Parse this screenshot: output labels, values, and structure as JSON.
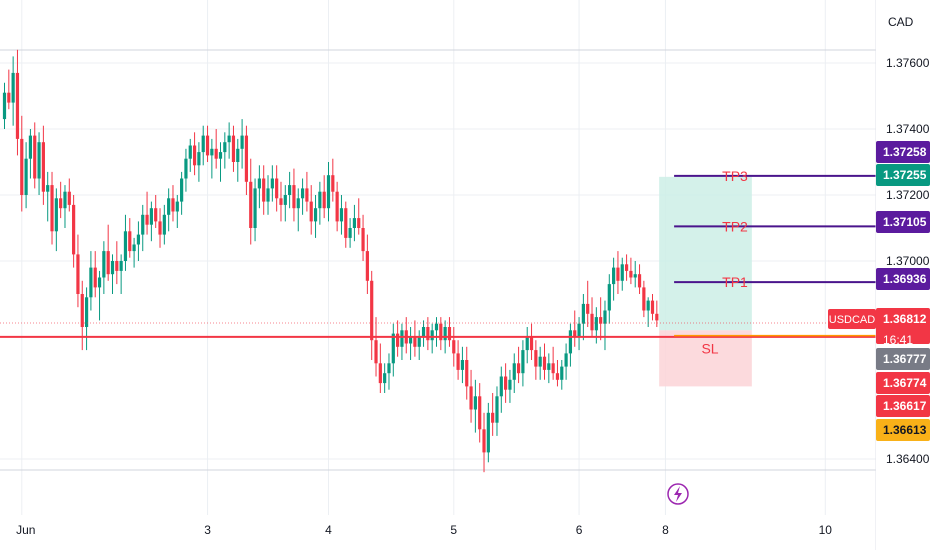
{
  "currency": "CAD",
  "symbol": "USDCAD",
  "countdown": "16:41",
  "colors": {
    "up": "#089981",
    "down": "#f23645",
    "tp_line": "#4a148c",
    "tp_badge": "#5b1b9e",
    "sl_line": "#ff9800",
    "sl_badge": "#f9b118",
    "target_zone": "#cdeee6",
    "stop_zone": "#fbd3d7",
    "support_line": "#f23645",
    "entry_badge": "#089981",
    "grid": "#eceff3",
    "flash_icon": "#9c27b0"
  },
  "icons": {
    "flash": "lightning-bolt-icon"
  },
  "chart_data": {
    "type": "candlestick",
    "y_axis": {
      "ticks": [
        "1.37600",
        "1.37400",
        "1.37200",
        "1.37000",
        "1.36400"
      ],
      "tick_values": [
        1.376,
        1.374,
        1.372,
        1.37,
        1.364
      ],
      "range": [
        1.3633,
        1.3772
      ]
    },
    "x_axis": {
      "ticks": [
        "Jun",
        "3",
        "4",
        "5",
        "6",
        "8",
        "10"
      ],
      "tick_bar_index": [
        4,
        47,
        75,
        104,
        133,
        153,
        190
      ]
    },
    "levels": [
      {
        "label": "TP3",
        "price": "1.37258",
        "value": 1.37258,
        "style": "tp"
      },
      {
        "label": "",
        "price": "1.37255",
        "value": 1.37255,
        "style": "entry-green"
      },
      {
        "label": "TP2",
        "price": "1.37105",
        "value": 1.37105,
        "style": "tp"
      },
      {
        "label": "TP1",
        "price": "1.36936",
        "value": 1.36936,
        "style": "tp"
      },
      {
        "label": "",
        "price": "1.36812",
        "value": 1.36812,
        "style": "current"
      },
      {
        "label": "",
        "price": "1.36777",
        "value": 1.36777,
        "style": "gray"
      },
      {
        "label": "",
        "price": "1.36774",
        "value": 1.36774,
        "style": "red"
      },
      {
        "label": "",
        "price": "1.36617",
        "value": 1.36617,
        "style": "red"
      },
      {
        "label": "SL",
        "price": "1.36613",
        "value": 1.36613,
        "style": "sl"
      }
    ],
    "support_level": 1.3677,
    "position": {
      "entry": 1.3679,
      "target": 1.37255,
      "stop": 1.3662,
      "start_bar": 152,
      "end_bar": 173
    },
    "candles": [
      [
        1.3743,
        1.3754,
        1.374,
        1.3751
      ],
      [
        1.3751,
        1.3758,
        1.3746,
        1.3748
      ],
      [
        1.3748,
        1.3762,
        1.3741,
        1.3757
      ],
      [
        1.3757,
        1.3764,
        1.3732,
        1.3737
      ],
      [
        1.3737,
        1.3744,
        1.3715,
        1.372
      ],
      [
        1.372,
        1.3736,
        1.3716,
        1.3731
      ],
      [
        1.3731,
        1.374,
        1.3725,
        1.3738
      ],
      [
        1.3738,
        1.3742,
        1.3722,
        1.3725
      ],
      [
        1.3725,
        1.3739,
        1.372,
        1.3736
      ],
      [
        1.3736,
        1.3741,
        1.3717,
        1.3721
      ],
      [
        1.3721,
        1.3727,
        1.3712,
        1.3723
      ],
      [
        1.3723,
        1.3727,
        1.3705,
        1.3709
      ],
      [
        1.3709,
        1.3722,
        1.3703,
        1.3719
      ],
      [
        1.3719,
        1.3724,
        1.3713,
        1.3716
      ],
      [
        1.3716,
        1.3723,
        1.371,
        1.3721
      ],
      [
        1.3721,
        1.3725,
        1.3715,
        1.3717
      ],
      [
        1.3717,
        1.372,
        1.3698,
        1.3702
      ],
      [
        1.3702,
        1.3708,
        1.3686,
        1.369
      ],
      [
        1.369,
        1.3694,
        1.3673,
        1.368
      ],
      [
        1.368,
        1.3692,
        1.3673,
        1.3689
      ],
      [
        1.3689,
        1.3703,
        1.3685,
        1.3698
      ],
      [
        1.3698,
        1.3703,
        1.3689,
        1.3692
      ],
      [
        1.3692,
        1.3697,
        1.3682,
        1.3695
      ],
      [
        1.3695,
        1.3706,
        1.369,
        1.3703
      ],
      [
        1.3703,
        1.3711,
        1.3694,
        1.3696
      ],
      [
        1.3696,
        1.3702,
        1.369,
        1.37
      ],
      [
        1.37,
        1.3706,
        1.3693,
        1.3697
      ],
      [
        1.3697,
        1.3702,
        1.369,
        1.37
      ],
      [
        1.37,
        1.3714,
        1.3697,
        1.3709
      ],
      [
        1.3709,
        1.3713,
        1.3701,
        1.3703
      ],
      [
        1.3703,
        1.3707,
        1.3698,
        1.3705
      ],
      [
        1.3705,
        1.3712,
        1.37,
        1.3708
      ],
      [
        1.3708,
        1.3717,
        1.3703,
        1.3714
      ],
      [
        1.3714,
        1.3721,
        1.3708,
        1.3711
      ],
      [
        1.3711,
        1.3718,
        1.3706,
        1.3716
      ],
      [
        1.3716,
        1.372,
        1.371,
        1.3712
      ],
      [
        1.3712,
        1.3716,
        1.3704,
        1.3708
      ],
      [
        1.3708,
        1.3717,
        1.3705,
        1.3714
      ],
      [
        1.3714,
        1.3722,
        1.3709,
        1.3719
      ],
      [
        1.3719,
        1.3723,
        1.3712,
        1.3715
      ],
      [
        1.3715,
        1.372,
        1.371,
        1.3718
      ],
      [
        1.3718,
        1.3727,
        1.3714,
        1.3725
      ],
      [
        1.3725,
        1.3734,
        1.3721,
        1.3731
      ],
      [
        1.3731,
        1.3737,
        1.3727,
        1.3735
      ],
      [
        1.3735,
        1.3739,
        1.3726,
        1.3729
      ],
      [
        1.3729,
        1.3736,
        1.3724,
        1.3733
      ],
      [
        1.3733,
        1.3741,
        1.3729,
        1.3738
      ],
      [
        1.3738,
        1.3741,
        1.373,
        1.3732
      ],
      [
        1.3732,
        1.3737,
        1.3725,
        1.3734
      ],
      [
        1.3734,
        1.374,
        1.3728,
        1.3731
      ],
      [
        1.3731,
        1.3736,
        1.3724,
        1.3733
      ],
      [
        1.3733,
        1.3739,
        1.3728,
        1.3736
      ],
      [
        1.3736,
        1.3742,
        1.3731,
        1.3738
      ],
      [
        1.3738,
        1.3741,
        1.3727,
        1.373
      ],
      [
        1.373,
        1.3737,
        1.3724,
        1.3734
      ],
      [
        1.3734,
        1.3743,
        1.3728,
        1.3738
      ],
      [
        1.3738,
        1.3741,
        1.372,
        1.3724
      ],
      [
        1.3724,
        1.3731,
        1.3705,
        1.371
      ],
      [
        1.371,
        1.3725,
        1.3706,
        1.3722
      ],
      [
        1.3722,
        1.3729,
        1.3716,
        1.3725
      ],
      [
        1.3725,
        1.3729,
        1.3714,
        1.3718
      ],
      [
        1.3718,
        1.3726,
        1.3714,
        1.3722
      ],
      [
        1.3722,
        1.3729,
        1.3718,
        1.3725
      ],
      [
        1.3725,
        1.3729,
        1.3715,
        1.3719
      ],
      [
        1.3719,
        1.3724,
        1.3712,
        1.3717
      ],
      [
        1.3717,
        1.3723,
        1.3712,
        1.372
      ],
      [
        1.372,
        1.3727,
        1.3716,
        1.3723
      ],
      [
        1.3723,
        1.3728,
        1.3712,
        1.3716
      ],
      [
        1.3716,
        1.3722,
        1.3709,
        1.3719
      ],
      [
        1.3719,
        1.3725,
        1.3714,
        1.3722
      ],
      [
        1.3722,
        1.3727,
        1.3715,
        1.3718
      ],
      [
        1.3718,
        1.3723,
        1.3708,
        1.3712
      ],
      [
        1.3712,
        1.372,
        1.3707,
        1.3716
      ],
      [
        1.3716,
        1.3724,
        1.3711,
        1.3721
      ],
      [
        1.3721,
        1.3726,
        1.3713,
        1.3716
      ],
      [
        1.3716,
        1.373,
        1.3712,
        1.3726
      ],
      [
        1.3726,
        1.3731,
        1.3718,
        1.3721
      ],
      [
        1.3721,
        1.3724,
        1.3709,
        1.3712
      ],
      [
        1.3712,
        1.372,
        1.3708,
        1.3716
      ],
      [
        1.3716,
        1.3718,
        1.3704,
        1.3707
      ],
      [
        1.3707,
        1.3713,
        1.3704,
        1.371
      ],
      [
        1.371,
        1.3717,
        1.3706,
        1.3713
      ],
      [
        1.3713,
        1.3719,
        1.3708,
        1.371
      ],
      [
        1.371,
        1.3714,
        1.37,
        1.3703
      ],
      [
        1.3703,
        1.3708,
        1.369,
        1.3694
      ],
      [
        1.3694,
        1.3697,
        1.367,
        1.3676
      ],
      [
        1.3676,
        1.3683,
        1.3665,
        1.3669
      ],
      [
        1.3669,
        1.3675,
        1.366,
        1.3663
      ],
      [
        1.3663,
        1.3669,
        1.366,
        1.3666
      ],
      [
        1.3666,
        1.3672,
        1.3661,
        1.3669
      ],
      [
        1.3669,
        1.3681,
        1.3665,
        1.3678
      ],
      [
        1.3678,
        1.3682,
        1.3671,
        1.3674
      ],
      [
        1.3674,
        1.3681,
        1.367,
        1.3679
      ],
      [
        1.3679,
        1.3683,
        1.3672,
        1.3675
      ],
      [
        1.3675,
        1.368,
        1.367,
        1.3677
      ],
      [
        1.3677,
        1.3682,
        1.3671,
        1.3674
      ],
      [
        1.3674,
        1.3679,
        1.367,
        1.3677
      ],
      [
        1.3677,
        1.3682,
        1.3674,
        1.368
      ],
      [
        1.368,
        1.3683,
        1.3673,
        1.3676
      ],
      [
        1.3676,
        1.3681,
        1.3672,
        1.3679
      ],
      [
        1.3679,
        1.3683,
        1.3674,
        1.3681
      ],
      [
        1.3681,
        1.3683,
        1.3673,
        1.3676
      ],
      [
        1.3676,
        1.3682,
        1.3672,
        1.368
      ],
      [
        1.368,
        1.3683,
        1.3674,
        1.3676
      ],
      [
        1.3676,
        1.368,
        1.3668,
        1.3672
      ],
      [
        1.3672,
        1.3676,
        1.3664,
        1.3667
      ],
      [
        1.3667,
        1.3674,
        1.3663,
        1.367
      ],
      [
        1.367,
        1.3674,
        1.3658,
        1.3662
      ],
      [
        1.3662,
        1.3667,
        1.3651,
        1.3655
      ],
      [
        1.3655,
        1.3664,
        1.3648,
        1.3659
      ],
      [
        1.3659,
        1.3663,
        1.3645,
        1.3649
      ],
      [
        1.3649,
        1.3654,
        1.3636,
        1.3642
      ],
      [
        1.3642,
        1.3657,
        1.3639,
        1.3654
      ],
      [
        1.3654,
        1.366,
        1.3647,
        1.3651
      ],
      [
        1.3651,
        1.3662,
        1.3647,
        1.3659
      ],
      [
        1.3659,
        1.3668,
        1.3654,
        1.3665
      ],
      [
        1.3665,
        1.3669,
        1.3657,
        1.3661
      ],
      [
        1.3661,
        1.3667,
        1.3657,
        1.3664
      ],
      [
        1.3664,
        1.3672,
        1.366,
        1.3669
      ],
      [
        1.3669,
        1.3674,
        1.3663,
        1.3666
      ],
      [
        1.3666,
        1.3676,
        1.3662,
        1.3673
      ],
      [
        1.3673,
        1.368,
        1.3669,
        1.3677
      ],
      [
        1.3677,
        1.3681,
        1.367,
        1.3673
      ],
      [
        1.3673,
        1.3676,
        1.3664,
        1.3668
      ],
      [
        1.3668,
        1.3674,
        1.3664,
        1.3671
      ],
      [
        1.3671,
        1.3675,
        1.3664,
        1.3667
      ],
      [
        1.3667,
        1.3672,
        1.3663,
        1.3669
      ],
      [
        1.3669,
        1.3674,
        1.3664,
        1.3666
      ],
      [
        1.3666,
        1.367,
        1.3662,
        1.3664
      ],
      [
        1.3664,
        1.367,
        1.3661,
        1.3668
      ],
      [
        1.3668,
        1.3675,
        1.3664,
        1.3672
      ],
      [
        1.3672,
        1.3681,
        1.3668,
        1.3679
      ],
      [
        1.3679,
        1.3685,
        1.3674,
        1.3677
      ],
      [
        1.3677,
        1.3683,
        1.3673,
        1.3681
      ],
      [
        1.3681,
        1.369,
        1.3676,
        1.3687
      ],
      [
        1.3687,
        1.3694,
        1.368,
        1.3684
      ],
      [
        1.3684,
        1.3689,
        1.3677,
        1.3679
      ],
      [
        1.3679,
        1.3686,
        1.3675,
        1.3683
      ],
      [
        1.3683,
        1.3689,
        1.3676,
        1.3681
      ],
      [
        1.3681,
        1.3688,
        1.3673,
        1.3685
      ],
      [
        1.3685,
        1.3696,
        1.3681,
        1.3693
      ],
      [
        1.3693,
        1.3701,
        1.3688,
        1.3698
      ],
      [
        1.3698,
        1.3703,
        1.369,
        1.3694
      ],
      [
        1.3694,
        1.3701,
        1.3691,
        1.3699
      ],
      [
        1.3699,
        1.3702,
        1.3694,
        1.3697
      ],
      [
        1.3697,
        1.3701,
        1.3693,
        1.3695
      ],
      [
        1.3695,
        1.37,
        1.3692,
        1.3696
      ],
      [
        1.3696,
        1.3699,
        1.369,
        1.3692
      ],
      [
        1.3692,
        1.3694,
        1.3683,
        1.3685
      ],
      [
        1.3685,
        1.3689,
        1.368,
        1.3688
      ],
      [
        1.3688,
        1.369,
        1.3682,
        1.3684
      ],
      [
        1.3684,
        1.3688,
        1.368,
        1.3682
      ]
    ]
  }
}
